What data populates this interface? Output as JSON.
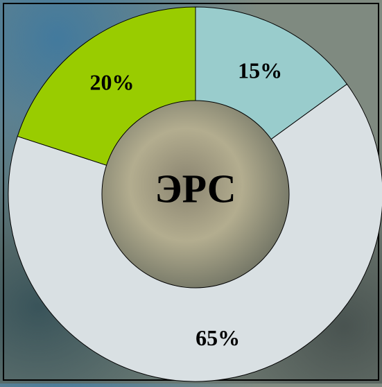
{
  "chart_data": {
    "type": "donut",
    "center_label": "ЭРС",
    "values": [
      15,
      65,
      20
    ],
    "value_labels": [
      "15%",
      "65%",
      "20%"
    ],
    "colors": [
      "#99cccc",
      "#d9e0e3",
      "#99cc00"
    ]
  }
}
